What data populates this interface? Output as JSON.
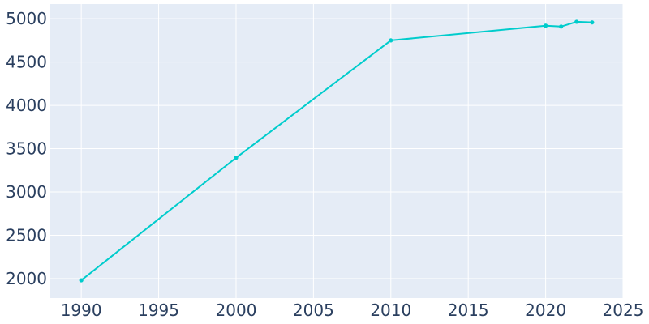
{
  "chart_data": {
    "type": "line",
    "title": "",
    "xlabel": "",
    "ylabel": "",
    "xlim": [
      1988,
      2025
    ],
    "ylim": [
      1775,
      5170
    ],
    "x_ticks": [
      1990,
      1995,
      2000,
      2005,
      2010,
      2015,
      2020,
      2025
    ],
    "y_ticks": [
      2000,
      2500,
      3000,
      3500,
      4000,
      4500,
      5000
    ],
    "x_tick_labels": [
      "1990",
      "1995",
      "2000",
      "2005",
      "2010",
      "2015",
      "2020",
      "2025"
    ],
    "y_tick_labels": [
      "2000",
      "2500",
      "3000",
      "3500",
      "4000",
      "4500",
      "5000"
    ],
    "grid": true,
    "legend": "none",
    "series": [
      {
        "x": [
          1990,
          2000,
          2010,
          2020,
          2021,
          2022,
          2023
        ],
        "y": [
          1980,
          3395,
          4750,
          4920,
          4910,
          4965,
          4958
        ]
      }
    ],
    "colors": {
      "line": "#00cccc",
      "plot_background": "#e5ecf6",
      "grid": "#ffffff",
      "tick_text": "#2a3f5f"
    }
  }
}
